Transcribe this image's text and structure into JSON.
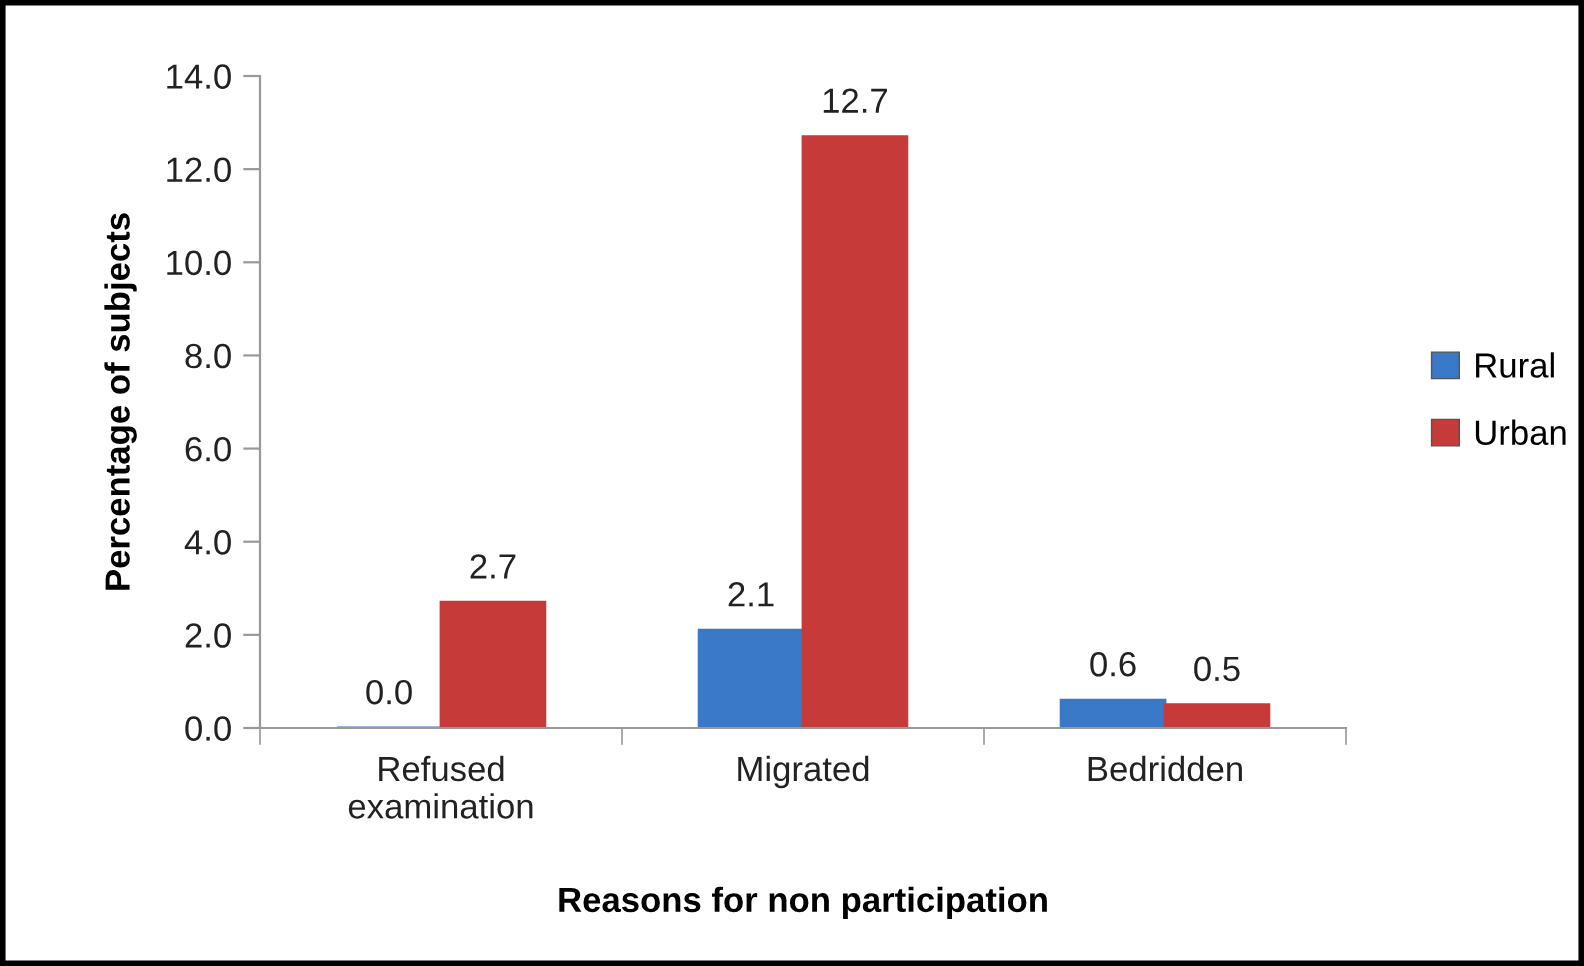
{
  "chart_data": {
    "type": "bar",
    "xlabel": "Reasons for non participation",
    "ylabel": "Percentage of subjects",
    "categories": [
      "Refused\nexamination",
      "Migrated",
      "Bedridden"
    ],
    "series": [
      {
        "name": "Rural",
        "color": "#3a78c8",
        "values": [
          0.0,
          2.1,
          0.6
        ],
        "value_labels": [
          "0.0",
          "2.1",
          "0.6"
        ]
      },
      {
        "name": "Urban",
        "color": "#c63a3a",
        "values": [
          2.7,
          12.7,
          0.5
        ],
        "value_labels": [
          "2.7",
          "12.7",
          "0.5"
        ]
      }
    ],
    "ylim": [
      0,
      14
    ],
    "yticks": [
      {
        "value": 0,
        "label": "0.0"
      },
      {
        "value": 2,
        "label": "2.0"
      },
      {
        "value": 4,
        "label": "4.0"
      },
      {
        "value": 6,
        "label": "6.0"
      },
      {
        "value": 8,
        "label": "8.0"
      },
      {
        "value": 10,
        "label": "10.0"
      },
      {
        "value": 12,
        "label": "12.0"
      },
      {
        "value": 14,
        "label": "14.0"
      }
    ],
    "grid": false,
    "legend": "right"
  }
}
